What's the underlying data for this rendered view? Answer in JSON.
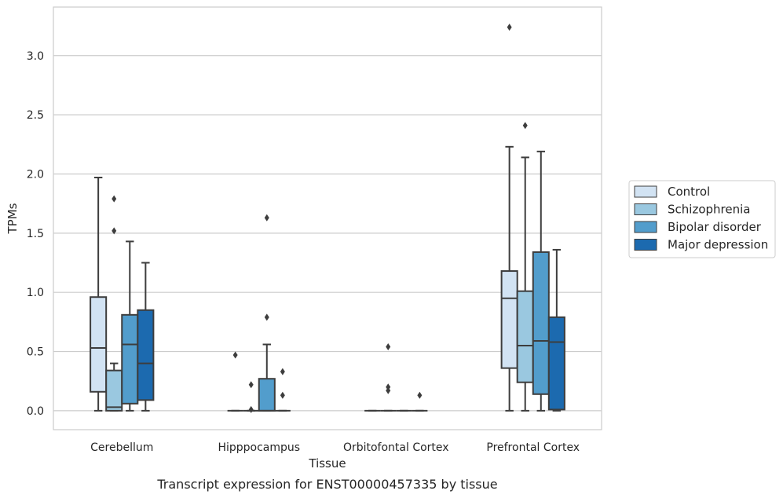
{
  "chart_data": {
    "type": "box",
    "title": "",
    "caption": "Transcript expression for ENST00000457335 by tissue",
    "xlabel": "Tissue",
    "ylabel": "TPMs",
    "ylim": [
      -0.16,
      3.41
    ],
    "yticks": [
      0.0,
      0.5,
      1.0,
      1.5,
      2.0,
      2.5,
      3.0
    ],
    "ytick_labels": [
      "0.0",
      "0.5",
      "1.0",
      "1.5",
      "2.0",
      "2.5",
      "3.0"
    ],
    "grid": "horizontal",
    "legend_position": "right",
    "categories": [
      "Cerebellum",
      "Hipppocampus",
      "Orbitofontal Cortex",
      "Prefrontal Cortex"
    ],
    "series": [
      {
        "name": "Control",
        "color": "#d2e3f3",
        "boxes": [
          {
            "whislo": 0.0,
            "q1": 0.16,
            "median": 0.53,
            "q3": 0.96,
            "whishi": 1.97,
            "fliers": []
          },
          {
            "whislo": 0.0,
            "q1": 0.0,
            "median": 0.0,
            "q3": 0.0,
            "whishi": 0.0,
            "fliers": [
              0.47
            ]
          },
          {
            "whislo": 0.0,
            "q1": 0.0,
            "median": 0.0,
            "q3": 0.0,
            "whishi": 0.0,
            "fliers": []
          },
          {
            "whislo": 0.0,
            "q1": 0.36,
            "median": 0.95,
            "q3": 1.18,
            "whishi": 2.23,
            "fliers": [
              3.24
            ]
          }
        ]
      },
      {
        "name": "Schizophrenia",
        "color": "#9ac8e0",
        "boxes": [
          {
            "whislo": 0.0,
            "q1": 0.0,
            "median": 0.03,
            "q3": 0.34,
            "whishi": 0.4,
            "fliers": [
              1.52,
              1.79
            ]
          },
          {
            "whislo": 0.0,
            "q1": 0.0,
            "median": 0.0,
            "q3": 0.0,
            "whishi": 0.0,
            "fliers": [
              0.01,
              0.22
            ]
          },
          {
            "whislo": 0.0,
            "q1": 0.0,
            "median": 0.0,
            "q3": 0.0,
            "whishi": 0.0,
            "fliers": [
              0.17,
              0.2,
              0.54
            ]
          },
          {
            "whislo": 0.0,
            "q1": 0.24,
            "median": 0.55,
            "q3": 1.01,
            "whishi": 2.14,
            "fliers": [
              2.41
            ]
          }
        ]
      },
      {
        "name": "Bipolar disorder",
        "color": "#529dcc",
        "boxes": [
          {
            "whislo": 0.0,
            "q1": 0.06,
            "median": 0.56,
            "q3": 0.81,
            "whishi": 1.43,
            "fliers": []
          },
          {
            "whislo": 0.0,
            "q1": 0.0,
            "median": 0.0,
            "q3": 0.27,
            "whishi": 0.56,
            "fliers": [
              0.79,
              1.63
            ]
          },
          {
            "whislo": 0.0,
            "q1": 0.0,
            "median": 0.0,
            "q3": 0.0,
            "whishi": 0.0,
            "fliers": []
          },
          {
            "whislo": 0.0,
            "q1": 0.14,
            "median": 0.59,
            "q3": 1.34,
            "whishi": 2.19,
            "fliers": []
          }
        ]
      },
      {
        "name": "Major depression",
        "color": "#1c6aaf",
        "boxes": [
          {
            "whislo": 0.0,
            "q1": 0.09,
            "median": 0.4,
            "q3": 0.85,
            "whishi": 1.25,
            "fliers": []
          },
          {
            "whislo": 0.0,
            "q1": 0.0,
            "median": 0.0,
            "q3": 0.0,
            "whishi": 0.0,
            "fliers": [
              0.13,
              0.33
            ]
          },
          {
            "whislo": 0.0,
            "q1": 0.0,
            "median": 0.0,
            "q3": 0.0,
            "whishi": 0.0,
            "fliers": [
              0.13
            ]
          },
          {
            "whislo": 0.0,
            "q1": 0.01,
            "median": 0.58,
            "q3": 0.79,
            "whishi": 1.36,
            "fliers": []
          }
        ]
      }
    ]
  }
}
